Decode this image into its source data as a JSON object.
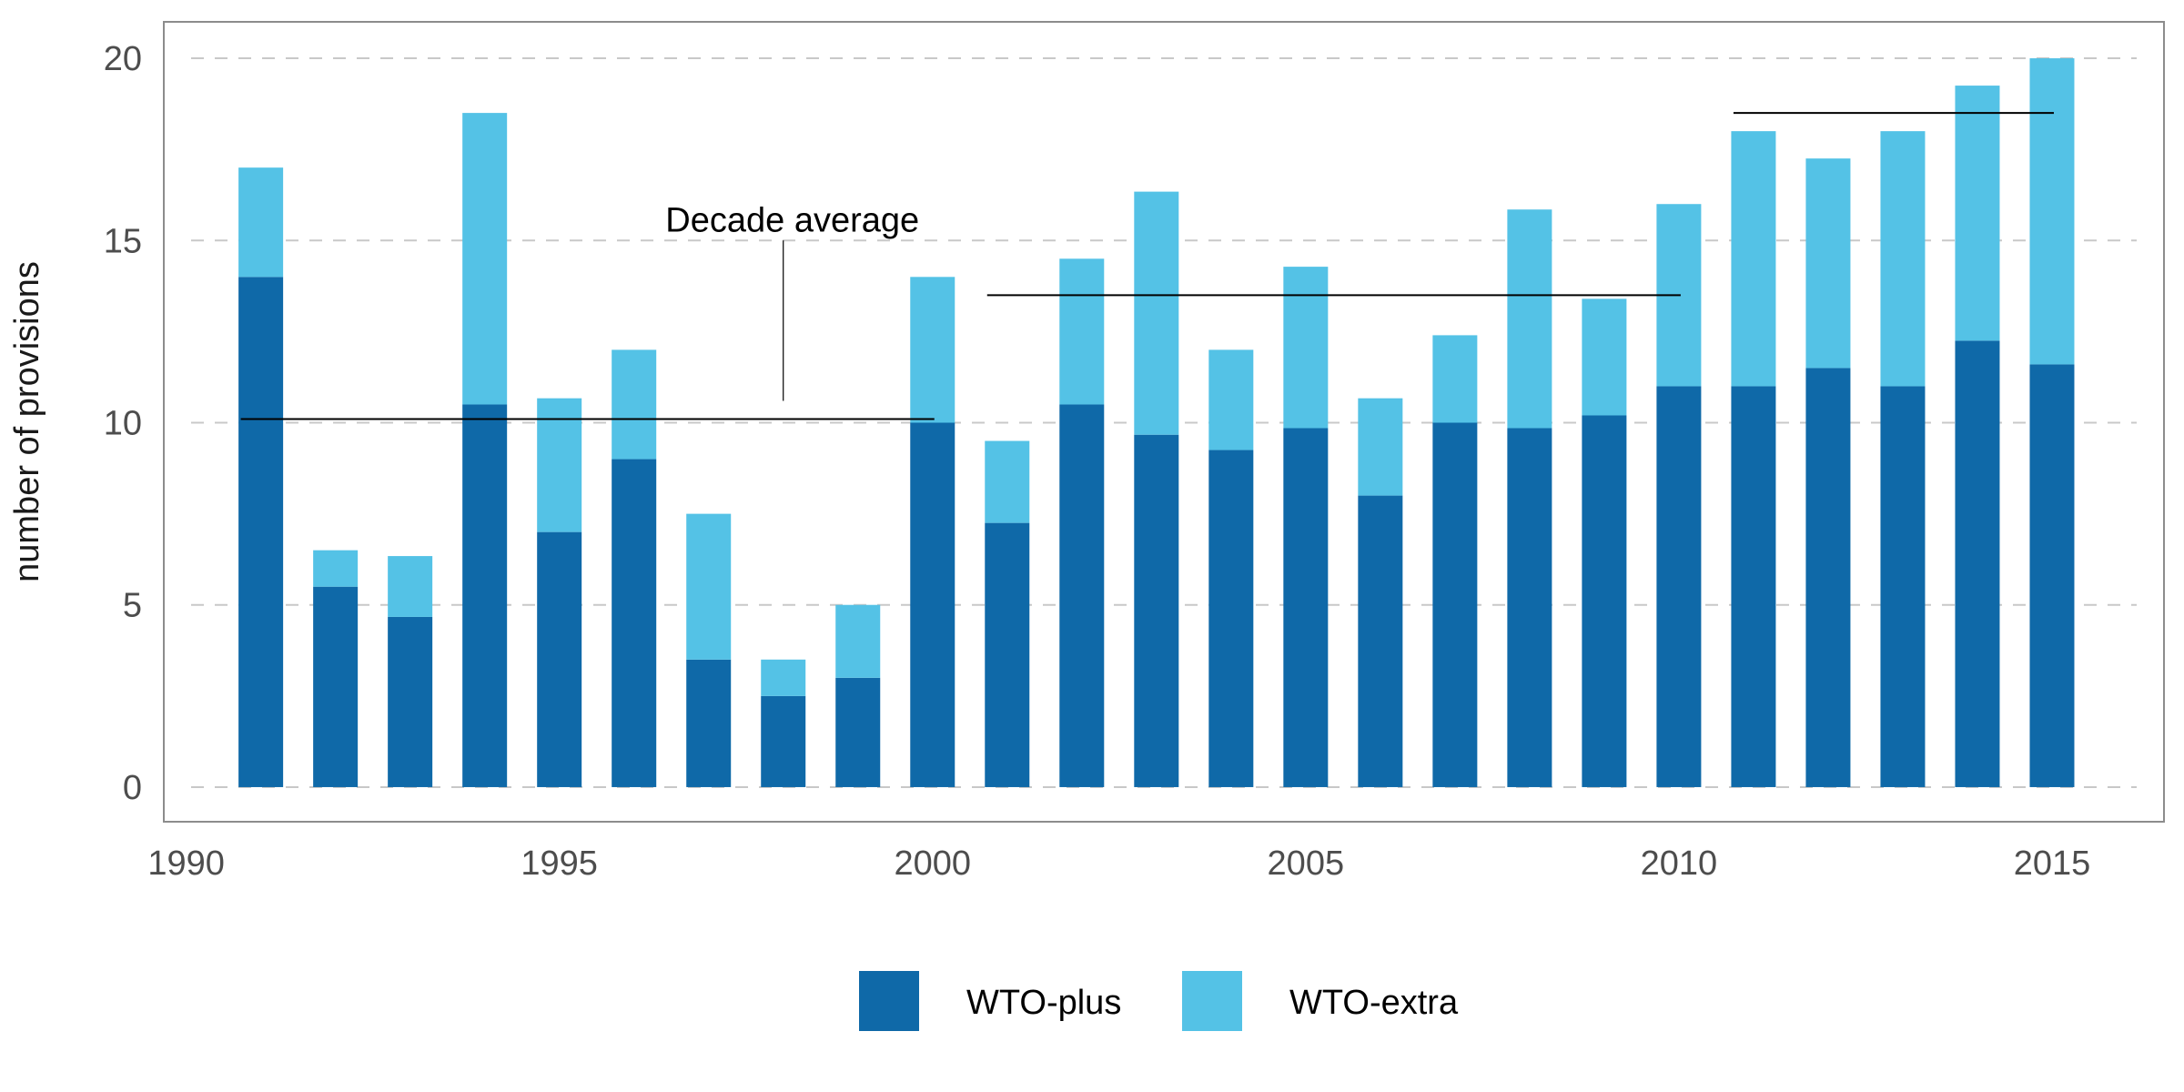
{
  "chart_data": {
    "type": "bar",
    "stacked": true,
    "x": [
      1991,
      1992,
      1993,
      1994,
      1995,
      1996,
      1997,
      1998,
      1999,
      2000,
      2001,
      2002,
      2003,
      2004,
      2005,
      2006,
      2007,
      2008,
      2009,
      2010,
      2011,
      2012,
      2013,
      2014,
      2015
    ],
    "series": [
      {
        "name": "WTO-plus",
        "color": "#0f69a8",
        "values": [
          14.0,
          5.5,
          4.67,
          10.5,
          7.0,
          9.0,
          3.5,
          2.5,
          3.0,
          10.0,
          7.25,
          10.5,
          9.67,
          9.25,
          9.85,
          8.0,
          10.0,
          9.85,
          10.2,
          11.0,
          11.0,
          11.5,
          11.0,
          12.25,
          11.6
        ]
      },
      {
        "name": "WTO-extra",
        "color": "#54c2e6",
        "values": [
          3.0,
          1.0,
          1.67,
          8.0,
          3.67,
          3.0,
          4.0,
          1.0,
          2.0,
          4.0,
          2.25,
          4.0,
          6.67,
          2.75,
          4.43,
          2.67,
          2.4,
          6.0,
          3.2,
          5.0,
          7.0,
          5.75,
          7.0,
          7.0,
          8.4
        ]
      }
    ],
    "title": "",
    "xlabel": "",
    "ylabel": "number of provisions",
    "xlim": [
      1989.7,
      2016.5
    ],
    "ylim": [
      -0.95,
      21.0
    ],
    "x_ticks": [
      1990,
      1995,
      2000,
      2005,
      2010,
      2015
    ],
    "y_ticks": [
      0,
      5,
      10,
      15,
      20
    ],
    "grid": "horizontal dashed",
    "legend_position": "bottom",
    "decade_averages": [
      {
        "x_start": 1991,
        "x_end": 2000,
        "value": 10.1
      },
      {
        "x_start": 2001,
        "x_end": 2010,
        "value": 13.5
      },
      {
        "x_start": 2011,
        "x_end": 2015,
        "value": 18.5
      }
    ],
    "annotation": {
      "text": "Decade average",
      "x": 1998,
      "y": 15.5,
      "line_from_y": 15.0,
      "line_to_y": 10.6
    }
  }
}
